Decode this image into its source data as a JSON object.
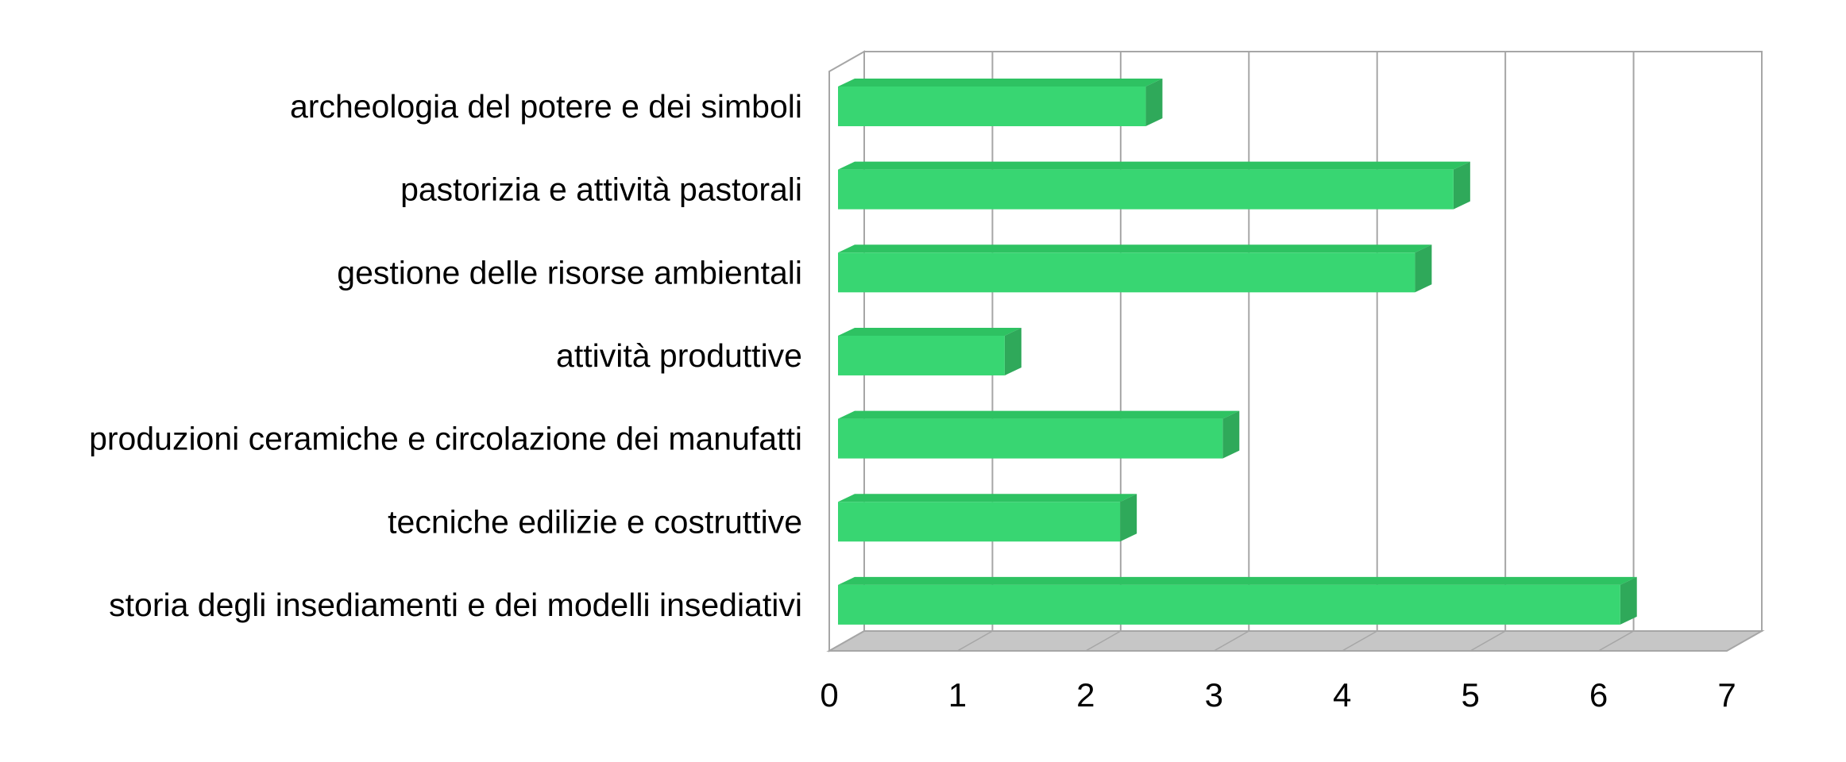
{
  "chart_data": {
    "type": "bar",
    "orientation": "horizontal",
    "style": "3d",
    "title": "",
    "categories": [
      "archeologia del potere e dei simboli",
      "pastorizia e attività pastorali",
      "gestione delle risorse ambientali",
      "attività produttive",
      "produzioni ceramiche e circolazione dei manufatti",
      "tecniche edilizie e costruttive",
      "storia degli insediamenti e dei modelli insediativi"
    ],
    "values": [
      2.4,
      4.8,
      4.5,
      1.3,
      3.0,
      2.2,
      6.1
    ],
    "xlabel": "",
    "ylabel": "",
    "xlim": [
      0,
      7
    ],
    "xticks": [
      0,
      1,
      2,
      3,
      4,
      5,
      6,
      7
    ],
    "grid": true,
    "legend": false,
    "colors": {
      "bar_front": "#38d672",
      "bar_top": "#2ec262",
      "bar_side": "#2fa95a",
      "floor": "#c6c6c6",
      "wall": "#ffffff",
      "gridline": "#a6a6a6",
      "text": "#000000",
      "background": "#ffffff"
    }
  }
}
